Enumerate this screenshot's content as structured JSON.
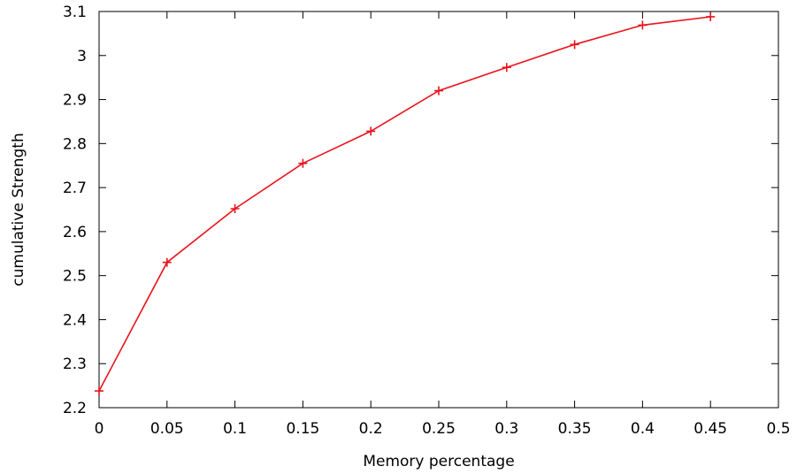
{
  "chart_data": {
    "type": "line",
    "title": "",
    "xlabel": "Memory percentage",
    "ylabel": "cumulative Strength",
    "xlim": [
      0,
      0.5
    ],
    "ylim": [
      2.2,
      3.1
    ],
    "xticks": [
      "0",
      "0.05",
      "0.1",
      "0.15",
      "0.2",
      "0.25",
      "0.3",
      "0.35",
      "0.4",
      "0.45",
      "0.5"
    ],
    "yticks": [
      "2.2",
      "2.3",
      "2.4",
      "2.5",
      "2.6",
      "2.7",
      "2.8",
      "2.9",
      "3",
      "3.1"
    ],
    "grid": false,
    "legend": "none",
    "series": [
      {
        "color": "#e8141c",
        "marker": "plus",
        "x": [
          0,
          0.05,
          0.1,
          0.15,
          0.2,
          0.25,
          0.3,
          0.35,
          0.4,
          0.45
        ],
        "y": [
          2.238,
          2.53,
          2.652,
          2.755,
          2.828,
          2.92,
          2.973,
          3.025,
          3.069,
          3.088
        ]
      }
    ]
  }
}
